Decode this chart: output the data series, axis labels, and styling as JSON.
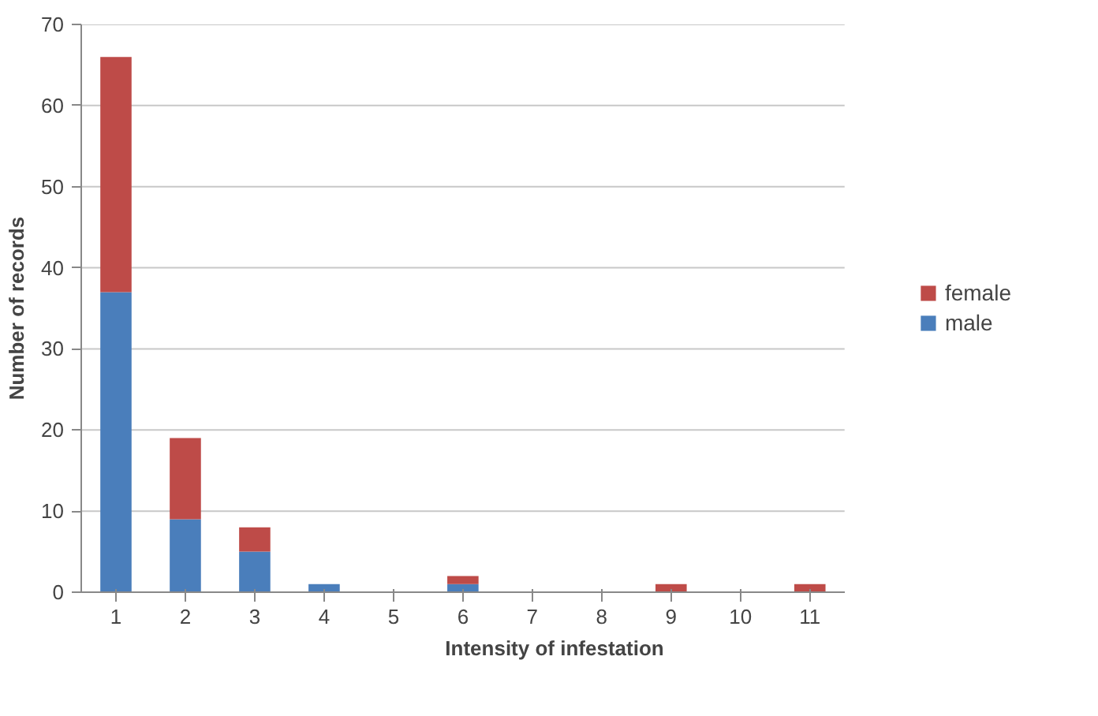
{
  "chart_data": {
    "type": "bar",
    "stacked": true,
    "xlabel": "Intensity of infestation",
    "ylabel": "Number of records",
    "categories": [
      "1",
      "2",
      "3",
      "4",
      "5",
      "6",
      "7",
      "8",
      "9",
      "10",
      "11"
    ],
    "series": [
      {
        "name": "male",
        "color": "#4a7ebb",
        "values": [
          37,
          9,
          5,
          1,
          0,
          1,
          0,
          0,
          0,
          0,
          0
        ]
      },
      {
        "name": "female",
        "color": "#be4b48",
        "values": [
          29,
          10,
          3,
          0,
          0,
          1,
          0,
          0,
          1,
          0,
          1
        ]
      }
    ],
    "ylim": [
      0,
      70
    ],
    "yticks": [
      0,
      10,
      20,
      30,
      40,
      50,
      60,
      70
    ],
    "grid": "y",
    "legend": "right"
  }
}
